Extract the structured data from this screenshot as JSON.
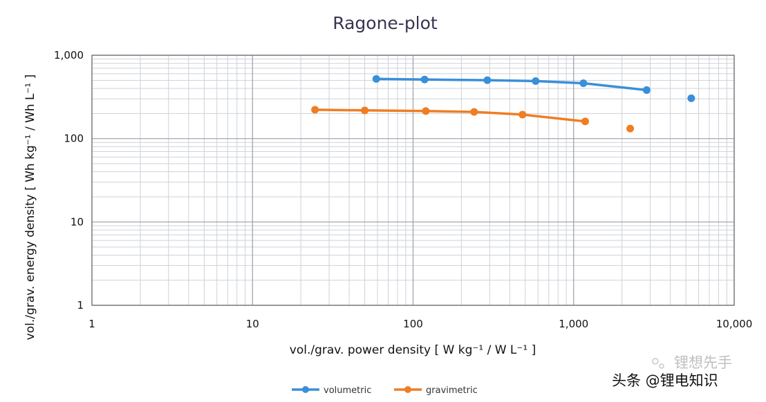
{
  "chart_data": {
    "type": "line",
    "title": "Ragone-plot",
    "xlabel": "vol./grav. power density [ W kg⁻¹ / W L⁻¹ ]",
    "ylabel": "vol./grav. energy density  [ Wh kg⁻¹ / Wh L⁻¹ ]",
    "xscale": "log",
    "yscale": "log",
    "xlim": [
      1,
      10000
    ],
    "ylim": [
      1,
      1000
    ],
    "x_ticks": [
      1,
      10,
      100,
      1000,
      10000
    ],
    "x_tick_labels": [
      "1",
      "10",
      "100",
      "1,000",
      "10,000"
    ],
    "y_ticks": [
      1,
      10,
      100,
      1000
    ],
    "y_tick_labels": [
      "1",
      "10",
      "100",
      "1,000"
    ],
    "grid": true,
    "legend_position": "bottom-center",
    "series": [
      {
        "name": "volumetric",
        "color": "#3a8fd9",
        "x": [
          59,
          118,
          290,
          580,
          1150,
          2850
        ],
        "y": [
          520,
          512,
          502,
          490,
          462,
          382
        ],
        "outlier": {
          "x": 5400,
          "y": 305
        }
      },
      {
        "name": "gravimetric",
        "color": "#f07d22",
        "x": [
          24.5,
          50,
          120,
          240,
          480,
          1180
        ],
        "y": [
          222,
          218,
          214,
          209,
          194,
          161
        ],
        "outlier": {
          "x": 2250,
          "y": 132
        }
      }
    ]
  },
  "watermark": {
    "text": "头条 @锂电知识",
    "faint_text": "锂想先手"
  }
}
